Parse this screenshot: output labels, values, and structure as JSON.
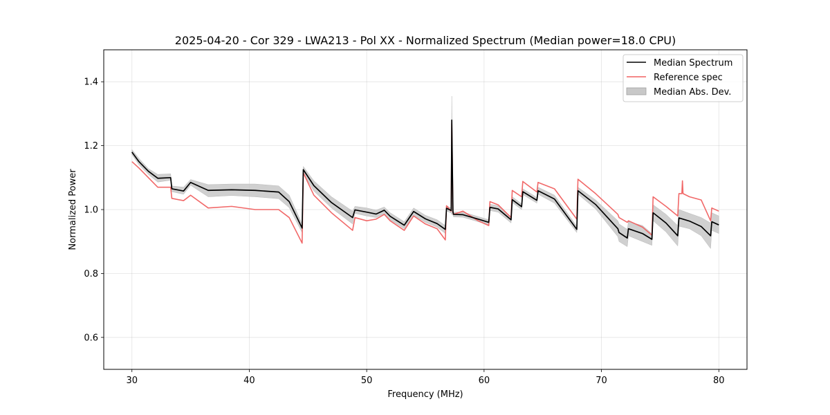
{
  "chart_data": {
    "type": "line",
    "title": "2025-04-20 - Cor 329 - LWA213 - Pol XX - Normalized Spectrum (Median power=18.0 CPU)",
    "xlabel": "Frequency (MHz)",
    "ylabel": "Normalized Power",
    "xlim": [
      27.6,
      82.4
    ],
    "ylim": [
      0.5,
      1.5
    ],
    "xticks": [
      30,
      40,
      50,
      60,
      70,
      80
    ],
    "yticks": [
      0.6,
      0.8,
      1.0,
      1.2,
      1.4
    ],
    "grid": true,
    "legend_position": "top-right",
    "legend": [
      {
        "label": "Median Spectrum",
        "kind": "line",
        "color": "#000000"
      },
      {
        "label": "Reference spec",
        "kind": "line",
        "color": "#f06060"
      },
      {
        "label": "Median Abs. Dev.",
        "kind": "patch",
        "color": "#c8c8c8"
      }
    ],
    "series": [
      {
        "name": "Median Abs. Dev.",
        "kind": "band",
        "color": "#c8c8c8",
        "x": [
          30.0,
          30.6,
          31.4,
          32.2,
          33.3,
          33.4,
          34.4,
          35.0,
          36.5,
          38.5,
          40.5,
          42.5,
          43.4,
          44.5,
          44.6,
          45.5,
          47.0,
          48.8,
          49.0,
          50.0,
          50.8,
          51.5,
          52.0,
          53.2,
          54.0,
          55.0,
          56.0,
          56.7,
          56.8,
          57.2,
          57.25,
          57.35,
          57.4,
          58.2,
          59.5,
          60.4,
          60.5,
          61.2,
          62.3,
          62.4,
          63.2,
          63.3,
          64.5,
          64.6,
          66.0,
          67.9,
          68.0,
          69.5,
          71.4,
          71.5,
          72.2,
          72.3,
          73.5,
          74.3,
          74.4,
          75.5,
          76.5,
          76.6,
          77.5,
          78.5,
          79.3,
          79.4,
          80.0
        ],
        "upper": [
          1.188,
          1.16,
          1.128,
          1.11,
          1.112,
          1.074,
          1.07,
          1.094,
          1.078,
          1.08,
          1.08,
          1.074,
          1.045,
          0.955,
          1.135,
          1.09,
          1.04,
          0.995,
          1.01,
          1.005,
          0.998,
          1.008,
          0.99,
          0.962,
          1.005,
          0.982,
          0.968,
          0.95,
          1.012,
          1.005,
          1.355,
          1.002,
          0.992,
          0.992,
          0.978,
          0.968,
          1.017,
          1.012,
          0.978,
          1.04,
          1.018,
          1.065,
          1.038,
          1.07,
          1.045,
          0.948,
          1.07,
          1.03,
          0.965,
          0.955,
          0.938,
          0.962,
          0.95,
          0.925,
          1.015,
          0.985,
          0.95,
          1.0,
          0.988,
          0.975,
          0.958,
          0.99,
          0.98
        ],
        "lower": [
          1.172,
          1.14,
          1.11,
          1.086,
          1.092,
          1.056,
          1.048,
          1.076,
          1.04,
          1.044,
          1.04,
          1.034,
          1.006,
          0.928,
          1.113,
          1.058,
          1.005,
          0.955,
          0.988,
          0.98,
          0.975,
          0.987,
          0.968,
          0.94,
          0.982,
          0.96,
          0.945,
          0.925,
          0.996,
          0.989,
          0.985,
          0.983,
          0.977,
          0.976,
          0.962,
          0.952,
          0.997,
          0.992,
          0.958,
          1.022,
          1.0,
          1.047,
          1.02,
          1.048,
          1.02,
          0.928,
          1.048,
          1.002,
          0.915,
          0.9,
          0.884,
          0.918,
          0.9,
          0.888,
          0.965,
          0.93,
          0.886,
          0.948,
          0.94,
          0.918,
          0.878,
          0.935,
          0.925
        ]
      },
      {
        "name": "Reference spec",
        "kind": "line",
        "color": "#f06060",
        "x": [
          30.0,
          30.6,
          31.4,
          32.2,
          33.3,
          33.4,
          34.4,
          35.0,
          36.5,
          38.5,
          40.5,
          42.5,
          43.4,
          44.5,
          44.6,
          45.5,
          47.0,
          48.8,
          49.0,
          50.0,
          50.8,
          51.5,
          52.0,
          53.2,
          54.0,
          55.0,
          56.0,
          56.7,
          56.8,
          57.2,
          57.25,
          57.35,
          57.4,
          58.2,
          59.5,
          60.4,
          60.5,
          61.2,
          62.3,
          62.4,
          63.2,
          63.3,
          64.5,
          64.6,
          66.0,
          67.9,
          68.0,
          69.5,
          71.4,
          71.5,
          72.2,
          72.3,
          73.5,
          74.3,
          74.4,
          75.5,
          76.5,
          76.6,
          76.85,
          76.9,
          76.95,
          77.5,
          78.5,
          79.3,
          79.4,
          80.0
        ],
        "values": [
          1.15,
          1.13,
          1.1,
          1.07,
          1.07,
          1.035,
          1.028,
          1.045,
          1.005,
          1.01,
          1.0,
          1.0,
          0.975,
          0.895,
          1.115,
          1.045,
          0.99,
          0.935,
          0.975,
          0.965,
          0.97,
          0.985,
          0.965,
          0.935,
          0.98,
          0.955,
          0.94,
          0.905,
          1.012,
          0.995,
          1.27,
          0.99,
          0.985,
          0.995,
          0.965,
          0.95,
          1.025,
          1.015,
          0.975,
          1.06,
          1.04,
          1.088,
          1.055,
          1.085,
          1.065,
          0.97,
          1.095,
          1.05,
          0.985,
          0.975,
          0.96,
          0.965,
          0.945,
          0.92,
          1.04,
          1.01,
          0.98,
          1.05,
          1.05,
          1.09,
          1.05,
          1.04,
          1.03,
          0.965,
          1.005,
          0.995
        ]
      },
      {
        "name": "Median Spectrum",
        "kind": "line",
        "color": "#000000",
        "x": [
          30.0,
          30.6,
          31.4,
          32.2,
          33.3,
          33.4,
          34.4,
          35.0,
          36.5,
          38.5,
          40.5,
          42.5,
          43.4,
          44.5,
          44.6,
          45.5,
          47.0,
          48.8,
          49.0,
          50.0,
          50.8,
          51.5,
          52.0,
          53.2,
          54.0,
          55.0,
          56.0,
          56.7,
          56.8,
          57.2,
          57.25,
          57.35,
          57.4,
          58.2,
          59.5,
          60.4,
          60.5,
          61.2,
          62.3,
          62.4,
          63.2,
          63.3,
          64.5,
          64.6,
          66.0,
          67.9,
          68.0,
          69.5,
          71.4,
          71.5,
          72.2,
          72.3,
          73.5,
          74.3,
          74.4,
          75.5,
          76.5,
          76.6,
          77.5,
          78.5,
          79.3,
          79.4,
          80.0
        ],
        "values": [
          1.18,
          1.15,
          1.12,
          1.098,
          1.1,
          1.065,
          1.058,
          1.085,
          1.06,
          1.062,
          1.06,
          1.055,
          1.025,
          0.942,
          1.125,
          1.075,
          1.022,
          0.975,
          0.999,
          0.992,
          0.986,
          0.998,
          0.979,
          0.951,
          0.994,
          0.971,
          0.956,
          0.938,
          1.004,
          0.997,
          1.28,
          0.993,
          0.985,
          0.984,
          0.97,
          0.96,
          1.007,
          1.002,
          0.968,
          1.031,
          1.009,
          1.056,
          1.029,
          1.059,
          1.033,
          0.938,
          1.059,
          1.016,
          0.94,
          0.928,
          0.911,
          0.94,
          0.925,
          0.907,
          0.99,
          0.958,
          0.918,
          0.974,
          0.964,
          0.947,
          0.918,
          0.962,
          0.952
        ]
      }
    ]
  }
}
